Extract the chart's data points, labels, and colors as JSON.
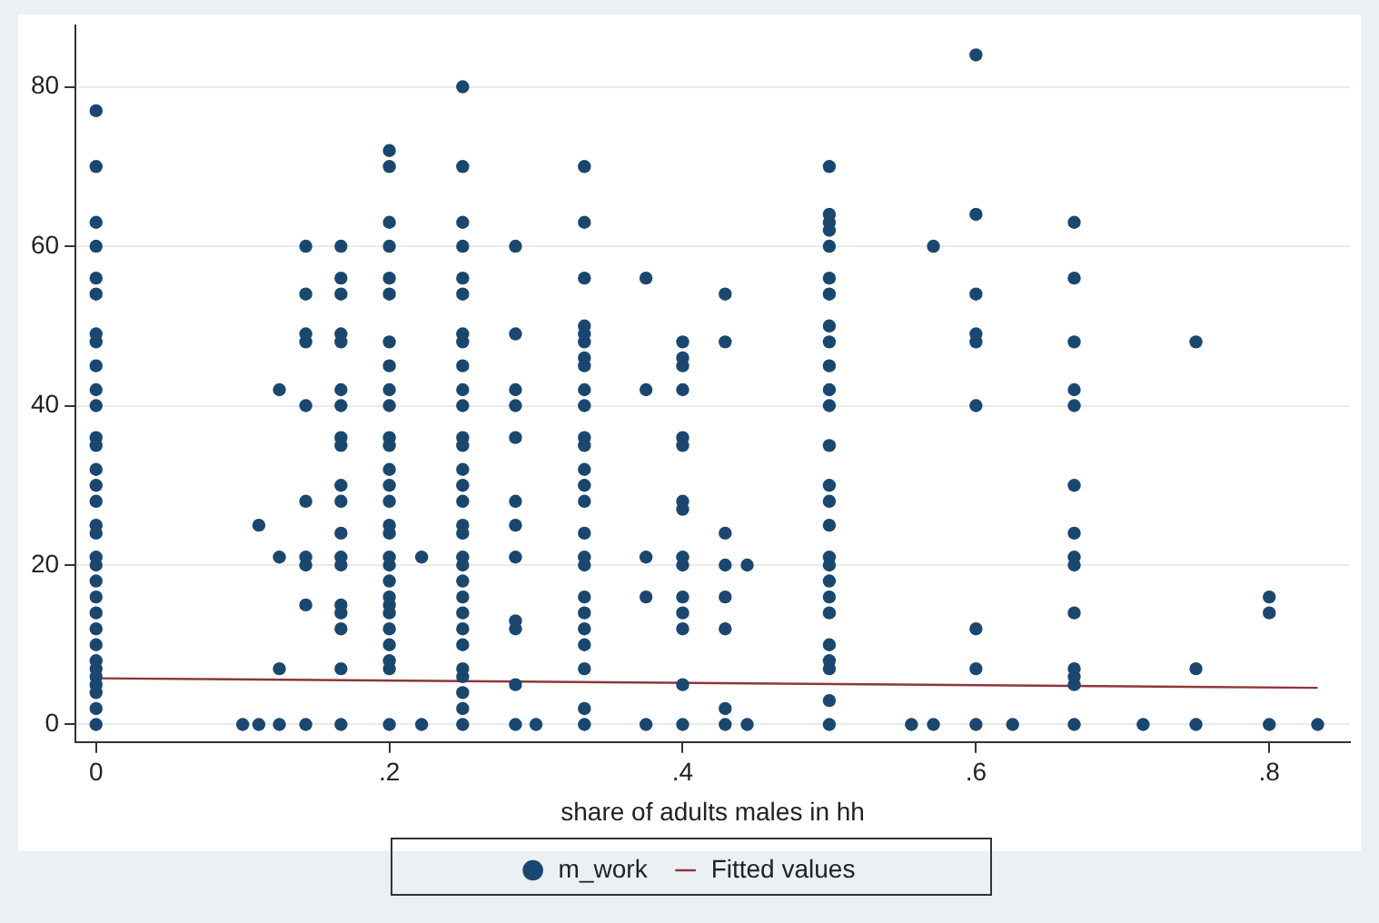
{
  "chart_data": {
    "type": "scatter",
    "xlabel": "share of adults males in hh",
    "xlim": [
      -0.014,
      0.855
    ],
    "ylim": [
      -2.2,
      87.7
    ],
    "xticks": [
      0,
      {
        "value": 0.2,
        "label": ".2"
      },
      {
        "value": 0.4,
        "label": ".4"
      },
      {
        "value": 0.6,
        "label": ".6"
      },
      {
        "value": 0.8,
        "label": ".8"
      }
    ],
    "yticks": [
      0,
      20,
      40,
      60,
      80
    ],
    "grid": "y",
    "legend": "bottom",
    "series": [
      {
        "name": "m_work",
        "marker": "circle",
        "color": "#1a476f",
        "x": [
          0,
          0,
          0,
          0,
          0,
          0,
          0,
          0,
          0,
          0,
          0,
          0,
          0,
          0,
          0,
          0,
          0,
          0,
          0,
          0,
          0,
          0,
          0,
          0,
          0,
          0,
          0,
          0,
          0,
          0,
          0,
          0,
          0.1,
          0.111,
          0.111,
          0.125,
          0.125,
          0.125,
          0.125,
          0.143,
          0.143,
          0.143,
          0.143,
          0.143,
          0.143,
          0.143,
          0.143,
          0.143,
          0.143,
          0.167,
          0.167,
          0.167,
          0.167,
          0.167,
          0.167,
          0.167,
          0.167,
          0.167,
          0.167,
          0.167,
          0.167,
          0.167,
          0.167,
          0.167,
          0.167,
          0.167,
          0.167,
          0.167,
          0.2,
          0.2,
          0.2,
          0.2,
          0.2,
          0.2,
          0.2,
          0.2,
          0.2,
          0.2,
          0.2,
          0.2,
          0.2,
          0.2,
          0.2,
          0.2,
          0.2,
          0.2,
          0.2,
          0.2,
          0.2,
          0.2,
          0.2,
          0.2,
          0.2,
          0.2,
          0.2,
          0.2,
          0.222,
          0.222,
          0.25,
          0.25,
          0.25,
          0.25,
          0.25,
          0.25,
          0.25,
          0.25,
          0.25,
          0.25,
          0.25,
          0.25,
          0.25,
          0.25,
          0.25,
          0.25,
          0.25,
          0.25,
          0.25,
          0.25,
          0.25,
          0.25,
          0.25,
          0.25,
          0.25,
          0.25,
          0.25,
          0.25,
          0.25,
          0.25,
          0.286,
          0.286,
          0.286,
          0.286,
          0.286,
          0.286,
          0.286,
          0.286,
          0.286,
          0.286,
          0.286,
          0.286,
          0.3,
          0.333,
          0.333,
          0.333,
          0.333,
          0.333,
          0.333,
          0.333,
          0.333,
          0.333,
          0.333,
          0.333,
          0.333,
          0.333,
          0.333,
          0.333,
          0.333,
          0.333,
          0.333,
          0.333,
          0.333,
          0.333,
          0.333,
          0.333,
          0.333,
          0.333,
          0.375,
          0.375,
          0.375,
          0.375,
          0.375,
          0.4,
          0.4,
          0.4,
          0.4,
          0.4,
          0.4,
          0.4,
          0.4,
          0.4,
          0.4,
          0.4,
          0.4,
          0.4,
          0.4,
          0.4,
          0.429,
          0.429,
          0.429,
          0.429,
          0.429,
          0.429,
          0.429,
          0.429,
          0.444,
          0.444,
          0.5,
          0.5,
          0.5,
          0.5,
          0.5,
          0.5,
          0.5,
          0.5,
          0.5,
          0.5,
          0.5,
          0.5,
          0.5,
          0.5,
          0.5,
          0.5,
          0.5,
          0.5,
          0.5,
          0.5,
          0.5,
          0.5,
          0.5,
          0.5,
          0.5,
          0.5,
          0.556,
          0.571,
          0.571,
          0.6,
          0.6,
          0.6,
          0.6,
          0.6,
          0.6,
          0.6,
          0.6,
          0.6,
          0.625,
          0.667,
          0.667,
          0.667,
          0.667,
          0.667,
          0.667,
          0.667,
          0.667,
          0.667,
          0.667,
          0.667,
          0.667,
          0.667,
          0.667,
          0.714,
          0.75,
          0.75,
          0.75,
          0.8,
          0.8,
          0.8,
          0.833
        ],
        "values": [
          0,
          2,
          4,
          5,
          6,
          7,
          8,
          10,
          12,
          14,
          16,
          18,
          20,
          21,
          24,
          25,
          28,
          30,
          32,
          35,
          36,
          40,
          42,
          45,
          48,
          49,
          54,
          56,
          60,
          63,
          70,
          77,
          0,
          0,
          25,
          0,
          7,
          21,
          42,
          0,
          15,
          20,
          21,
          28,
          40,
          48,
          49,
          54,
          60,
          0,
          7,
          12,
          14,
          15,
          20,
          21,
          24,
          28,
          30,
          35,
          36,
          40,
          42,
          48,
          49,
          54,
          56,
          60,
          0,
          7,
          8,
          10,
          12,
          14,
          15,
          16,
          18,
          20,
          21,
          24,
          25,
          28,
          30,
          32,
          35,
          36,
          40,
          42,
          45,
          48,
          54,
          56,
          60,
          63,
          70,
          72,
          0,
          21,
          0,
          2,
          4,
          6,
          7,
          10,
          12,
          14,
          16,
          18,
          20,
          21,
          24,
          25,
          28,
          30,
          32,
          35,
          36,
          40,
          42,
          45,
          48,
          49,
          54,
          56,
          60,
          63,
          70,
          80,
          0,
          5,
          12,
          13,
          21,
          25,
          28,
          36,
          40,
          42,
          49,
          60,
          0,
          0,
          2,
          7,
          10,
          12,
          14,
          16,
          20,
          21,
          24,
          28,
          30,
          32,
          35,
          36,
          40,
          42,
          45,
          46,
          48,
          49,
          50,
          56,
          63,
          70,
          0,
          16,
          21,
          42,
          56,
          0,
          5,
          12,
          14,
          16,
          20,
          21,
          27,
          28,
          35,
          36,
          42,
          45,
          46,
          48,
          0,
          2,
          12,
          16,
          20,
          24,
          48,
          54,
          0,
          20,
          0,
          3,
          7,
          8,
          10,
          14,
          16,
          18,
          20,
          21,
          25,
          28,
          30,
          35,
          40,
          42,
          45,
          48,
          50,
          54,
          56,
          60,
          62,
          63,
          64,
          70,
          0,
          0,
          60,
          0,
          7,
          12,
          40,
          48,
          49,
          54,
          64,
          84,
          0,
          0,
          5,
          6,
          7,
          14,
          20,
          21,
          24,
          30,
          40,
          42,
          48,
          56,
          63,
          0,
          0,
          7,
          48,
          0,
          14,
          16,
          0
        ]
      },
      {
        "name": "Fitted values",
        "type": "line",
        "color": "#90353b",
        "line_style": "solid",
        "marker": "none",
        "x": [
          0,
          0.833
        ],
        "values": [
          5.8,
          4.6
        ]
      }
    ]
  }
}
